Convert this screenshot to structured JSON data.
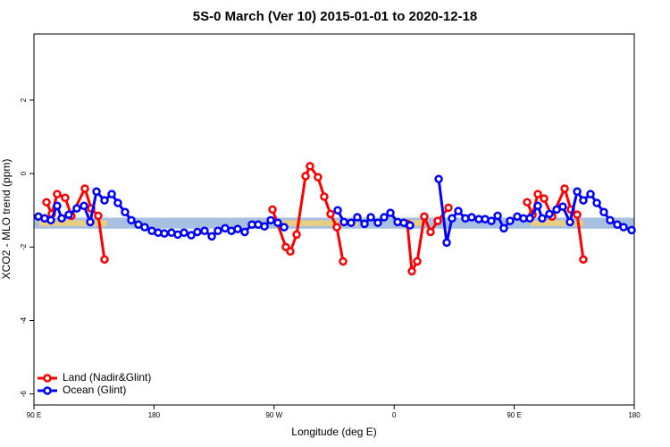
{
  "chart_data": {
    "type": "line",
    "title": "5S-0 March (Ver 10)   2015-01-01 to 2020-12-18",
    "x_label": "Longitude (deg E)",
    "y_label": "XCO2 - MLO trend (ppm)",
    "xlim": [
      90,
      540
    ],
    "ylim": [
      -6.3,
      3.8
    ],
    "xticks": [
      {
        "value": 90,
        "label": "90 E"
      },
      {
        "value": 180,
        "label": "180"
      },
      {
        "value": 270,
        "label": "90 W"
      },
      {
        "value": 360,
        "label": "0"
      },
      {
        "value": 450,
        "label": "90 E"
      },
      {
        "value": 540,
        "label": "180"
      }
    ],
    "yticks": [
      -6,
      -4,
      -2,
      0,
      2
    ],
    "band": {
      "ylim": [
        -1.5,
        -1.2
      ],
      "color": "#a7bfe0",
      "land_color": "#f6d06f",
      "land_x": [
        [
          94,
          145
        ],
        [
          272,
          333
        ],
        [
          364,
          382
        ],
        [
          462,
          502
        ]
      ]
    },
    "legend": "bottom-left",
    "series": [
      {
        "name": "Land (Nadir&Glint)",
        "color": "#ff0000",
        "x": [
          99.4,
          103.4,
          107.4,
          113.4,
          118.1,
          128.2,
          132.9,
          138.2,
          142.9,
          null,
          268.8,
          278.8,
          282.2,
          286.9,
          293.6,
          296.9,
          302.9,
          307.6,
          312.3,
          317.0,
          321.7,
          null,
          369.9,
          373.3,
          377.3,
          382.6,
          387.3,
          392.7,
          400.7,
          null,
          459.7,
          463.7,
          467.7,
          472.4,
          478.4,
          487.8,
          492.5,
          497.2,
          501.8
        ],
        "values": [
          -0.78,
          -1.1,
          -0.56,
          -0.66,
          -1.15,
          -0.41,
          -0.95,
          -1.15,
          -2.34,
          null,
          -0.98,
          -2.0,
          -2.12,
          -1.66,
          -0.07,
          0.2,
          -0.1,
          -0.63,
          -1.1,
          -1.46,
          -2.39,
          null,
          -1.37,
          -2.66,
          -2.39,
          -1.17,
          -1.59,
          -1.29,
          -0.93,
          null,
          -0.78,
          -1.12,
          -0.56,
          -0.68,
          -1.17,
          -0.41,
          -0.98,
          -1.12,
          -2.34
        ]
      },
      {
        "name": "Ocean (Glint)",
        "color": "#0000ff",
        "x": [
          93.3,
          98.0,
          102.7,
          107.4,
          110.8,
          116.1,
          122.1,
          127.5,
          132.2,
          136.9,
          142.9,
          148.3,
          152.9,
          158.3,
          163.0,
          168.3,
          173.0,
          178.4,
          183.1,
          187.8,
          193.1,
          197.8,
          202.5,
          207.9,
          212.5,
          217.9,
          223.3,
          227.9,
          233.3,
          238.0,
          242.7,
          248.0,
          253.4,
          258.1,
          262.8,
          267.5,
          272.8,
          277.5,
          null,
          317.7,
          322.4,
          327.7,
          332.4,
          337.8,
          342.5,
          347.8,
          352.5,
          357.2,
          362.6,
          367.2,
          371.9,
          null,
          393.4,
          399.4,
          403.4,
          408.1,
          413.4,
          418.1,
          423.5,
          428.2,
          432.9,
          437.6,
          442.2,
          446.9,
          452.3,
          457.0,
          461.7,
          467.7,
          471.0,
          476.4,
          481.8,
          486.4,
          491.8,
          497.2,
          501.8,
          507.2,
          511.9,
          517.2,
          521.9,
          527.3,
          532.0,
          538.0
        ],
        "values": [
          -1.17,
          -1.22,
          -1.27,
          -0.88,
          -1.22,
          -1.12,
          -0.95,
          -0.88,
          -1.32,
          -0.49,
          -0.73,
          -0.56,
          -0.8,
          -1.05,
          -1.27,
          -1.39,
          -1.46,
          -1.56,
          -1.61,
          -1.63,
          -1.61,
          -1.66,
          -1.61,
          -1.68,
          -1.59,
          -1.56,
          -1.71,
          -1.56,
          -1.49,
          -1.56,
          -1.51,
          -1.59,
          -1.39,
          -1.39,
          -1.44,
          -1.27,
          -1.34,
          -1.46,
          null,
          -1.0,
          -1.32,
          -1.34,
          -1.19,
          -1.37,
          -1.19,
          -1.34,
          -1.19,
          -1.07,
          -1.32,
          -1.34,
          -1.41,
          null,
          -0.15,
          -1.88,
          -1.22,
          -1.02,
          -1.22,
          -1.19,
          -1.24,
          -1.24,
          -1.29,
          -1.15,
          -1.49,
          -1.29,
          -1.17,
          -1.22,
          -1.22,
          -0.88,
          -1.22,
          -1.1,
          -0.98,
          -0.9,
          -1.32,
          -0.49,
          -0.73,
          -0.56,
          -0.8,
          -1.05,
          -1.27,
          -1.39,
          -1.46,
          -1.54
        ]
      }
    ]
  }
}
